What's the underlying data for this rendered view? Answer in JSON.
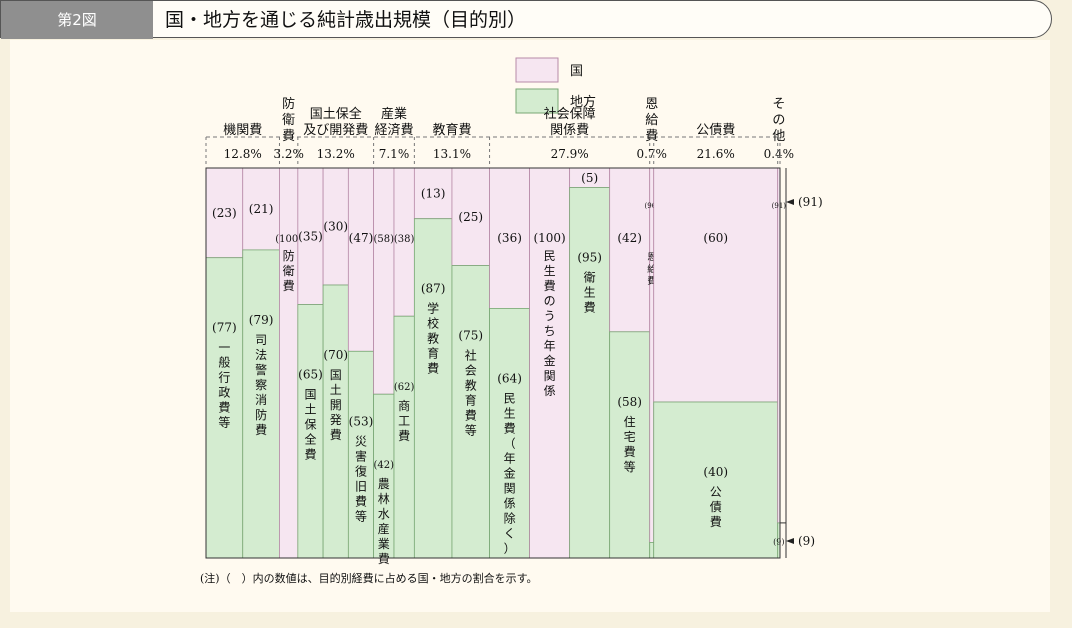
{
  "header": {
    "figure_label": "第2図",
    "title": "国・地方を通じる純計歳出規模（目的別）"
  },
  "legend": {
    "national": "国",
    "local": "地方"
  },
  "colors": {
    "national": "#f6e6f1",
    "local": "#d4ecd0",
    "national_border": "#b78aa8",
    "local_border": "#79a774"
  },
  "note": "(注)（　）内の数値は、目的別経費に占める国・地方の割合を示す。",
  "chart_data": {
    "type": "bar",
    "title": "国・地方を通じる純計歳出規模（目的別）",
    "xlabel": "",
    "ylabel": "",
    "ylim": [
      0,
      100
    ],
    "categories": [
      {
        "name": "機関費",
        "share": "12.8%",
        "share_value": 12.8,
        "items": [
          {
            "national": "(23)",
            "local": "(77)",
            "national_value": 23,
            "local_value": 77,
            "label": "一般行政費等"
          },
          {
            "national": "(21)",
            "local": "(79)",
            "national_value": 21,
            "local_value": 79,
            "label": "司法警察消防費"
          }
        ]
      },
      {
        "name": "防衛費",
        "share": "3.2%",
        "share_value": 3.2,
        "items": [
          {
            "national": "(100)",
            "local": "",
            "national_value": 100,
            "local_value": 0,
            "label": "防衛費"
          }
        ]
      },
      {
        "name": "国土保全及び開発費",
        "share": "13.2%",
        "share_value": 13.2,
        "items": [
          {
            "national": "(35)",
            "local": "(65)",
            "national_value": 35,
            "local_value": 65,
            "label": "国土保全費"
          },
          {
            "national": "(30)",
            "local": "(70)",
            "national_value": 30,
            "local_value": 70,
            "label": "国土開発費"
          },
          {
            "national": "(47)",
            "local": "(53)",
            "national_value": 47,
            "local_value": 53,
            "label": "災害復旧費等"
          }
        ]
      },
      {
        "name": "産業経済費",
        "share": "7.1%",
        "share_value": 7.1,
        "items": [
          {
            "national": "(58)",
            "local": "(42)",
            "national_value": 58,
            "local_value": 42,
            "label": "農林水産業費"
          },
          {
            "national": "(38)",
            "local": "(62)",
            "national_value": 38,
            "local_value": 62,
            "label": "商工費"
          }
        ]
      },
      {
        "name": "教育費",
        "share": "13.1%",
        "share_value": 13.1,
        "items": [
          {
            "national": "(13)",
            "local": "(87)",
            "national_value": 13,
            "local_value": 87,
            "label": "学校教育費"
          },
          {
            "national": "(25)",
            "local": "(75)",
            "national_value": 25,
            "local_value": 75,
            "label": "社会教育費等"
          }
        ]
      },
      {
        "name": "社会保障関係費",
        "share": "27.9%",
        "share_value": 27.9,
        "items": [
          {
            "national": "(36)",
            "local": "(64)",
            "national_value": 36,
            "local_value": 64,
            "label": "民生費（年金関係除く）"
          },
          {
            "national": "(100)",
            "local": "",
            "national_value": 100,
            "local_value": 0,
            "label": "民生費のうち年金関係"
          },
          {
            "national": "(5)",
            "local": "(95)",
            "national_value": 5,
            "local_value": 95,
            "label": "衛生費"
          },
          {
            "national": "(42)",
            "local": "(58)",
            "national_value": 42,
            "local_value": 58,
            "label": "住宅費等"
          }
        ]
      },
      {
        "name": "恩給費",
        "share": "0.7%",
        "share_value": 0.7,
        "items": [
          {
            "national": "(96)",
            "local": "(4)",
            "national_value": 96,
            "local_value": 4,
            "label": "恩給費"
          }
        ]
      },
      {
        "name": "公債費",
        "share": "21.6%",
        "share_value": 21.6,
        "items": [
          {
            "national": "(60)",
            "local": "(40)",
            "national_value": 60,
            "local_value": 40,
            "label": "公債費"
          }
        ]
      },
      {
        "name": "その他",
        "share": "0.4%",
        "share_value": 0.4,
        "items": [
          {
            "national": "(91)",
            "local": "(9)",
            "national_value": 91,
            "local_value": 9,
            "label": ""
          }
        ]
      }
    ]
  }
}
